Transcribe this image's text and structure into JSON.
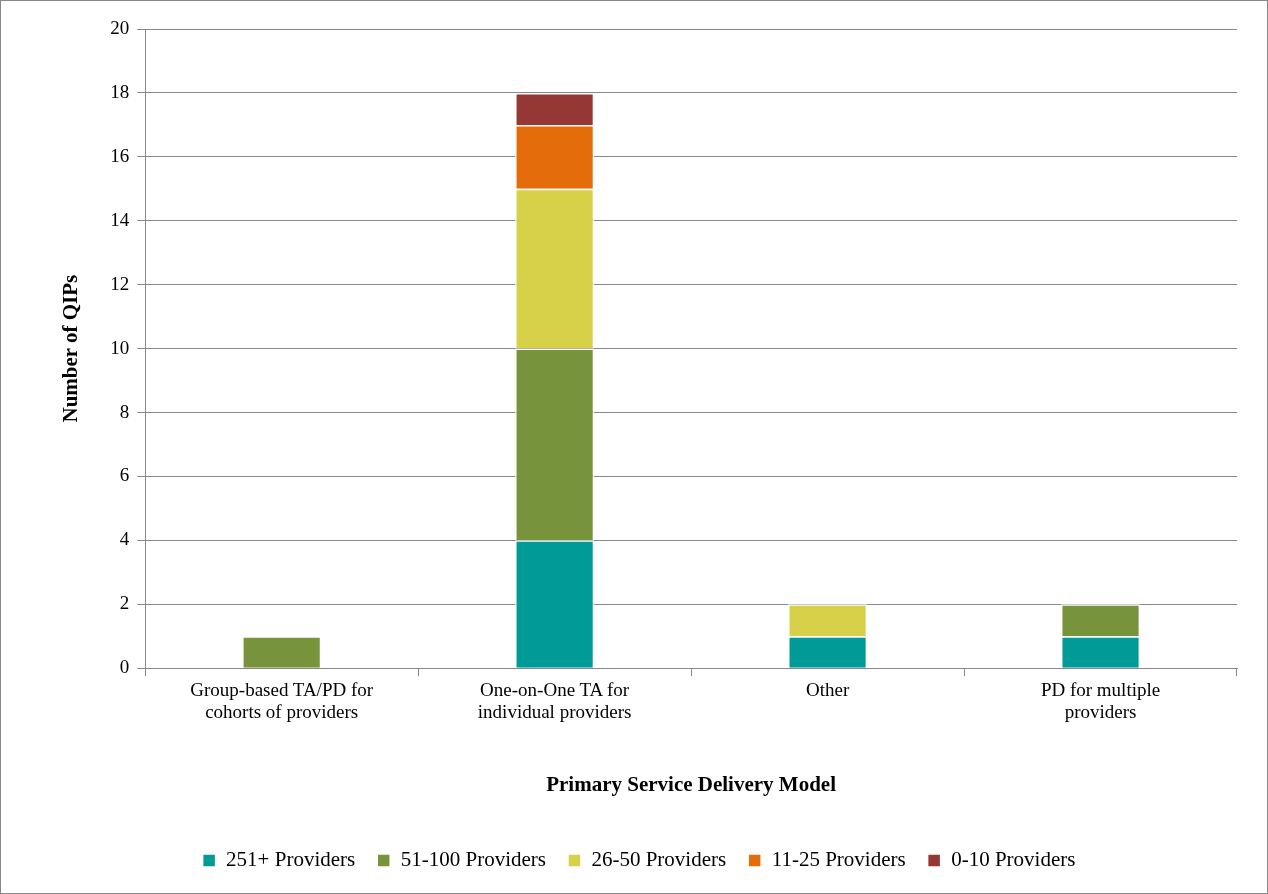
{
  "chart_data": {
    "type": "bar",
    "stacked": true,
    "xlabel": "Primary Service Delivery Model",
    "ylabel": "Number of QIPs",
    "categories": [
      "Group-based TA/PD for cohorts of providers",
      "One-on-One TA for individual providers",
      "Other",
      "PD for multiple providers"
    ],
    "series": [
      {
        "name": "251+ Providers",
        "color": "#009b96",
        "values": [
          null,
          4,
          1,
          1
        ]
      },
      {
        "name": "51-100 Providers",
        "color": "#77933c",
        "values": [
          1,
          6,
          null,
          1
        ]
      },
      {
        "name": "26-50 Providers",
        "color": "#d7d14a",
        "values": [
          null,
          5,
          1,
          null
        ]
      },
      {
        "name": "11-25 Providers",
        "color": "#e46c0a",
        "values": [
          null,
          2,
          null,
          null
        ]
      },
      {
        "name": "0-10 Providers",
        "color": "#953735",
        "values": [
          null,
          1,
          null,
          null
        ]
      }
    ],
    "ylim": [
      0,
      20
    ],
    "yticks": [
      0,
      2,
      4,
      6,
      8,
      10,
      12,
      14,
      16,
      18,
      20
    ],
    "grid": "y",
    "legend": "bottom"
  }
}
